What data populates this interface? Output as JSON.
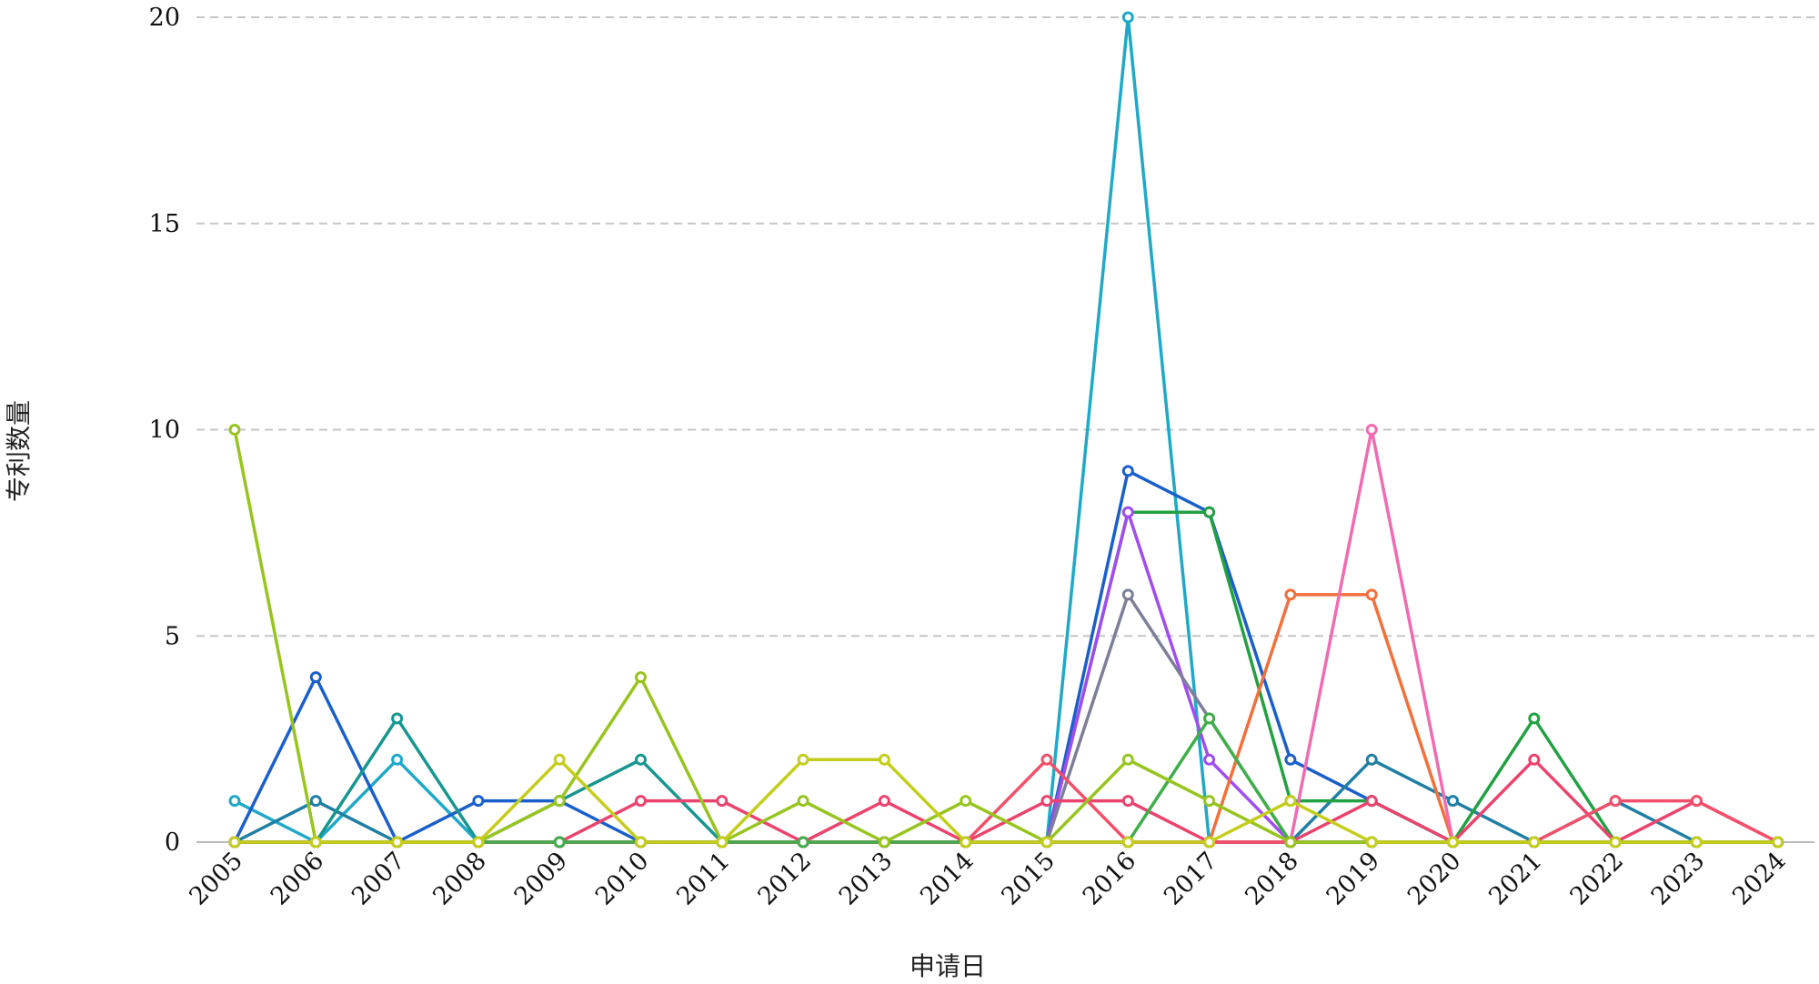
{
  "chart_data": {
    "type": "line",
    "xlabel": "申请日",
    "ylabel": "专利数量",
    "ylim": [
      0,
      20
    ],
    "yticks": [
      0,
      5,
      10,
      15,
      20
    ],
    "grid": true,
    "categories": [
      "2005",
      "2006",
      "2007",
      "2008",
      "2009",
      "2010",
      "2011",
      "2012",
      "2013",
      "2014",
      "2015",
      "2016",
      "2017",
      "2018",
      "2019",
      "2020",
      "2021",
      "2022",
      "2023",
      "2024"
    ],
    "series": [
      {
        "color": "#1fa9c7",
        "values": [
          1,
          0,
          2,
          0,
          0,
          0,
          0,
          0,
          0,
          0,
          0,
          20,
          0,
          0,
          0,
          0,
          0,
          0,
          0,
          0
        ]
      },
      {
        "color": "#1a5fc9",
        "values": [
          0,
          4,
          0,
          1,
          1,
          0,
          0,
          0,
          0,
          0,
          0,
          9,
          8,
          2,
          1,
          0,
          0,
          0,
          0,
          0
        ]
      },
      {
        "color": "#1f7fa3",
        "values": [
          0,
          1,
          0,
          0,
          0,
          0,
          0,
          0,
          0,
          0,
          0,
          0,
          0,
          0,
          2,
          1,
          0,
          1,
          0,
          0
        ]
      },
      {
        "color": "#17968f",
        "values": [
          0,
          0,
          3,
          0,
          1,
          2,
          0,
          0,
          0,
          0,
          0,
          0,
          0,
          0,
          0,
          0,
          0,
          0,
          0,
          0
        ]
      },
      {
        "color": "#22a042",
        "values": [
          0,
          0,
          0,
          0,
          0,
          0,
          0,
          0,
          0,
          0,
          0,
          8,
          8,
          1,
          1,
          0,
          3,
          0,
          0,
          0
        ]
      },
      {
        "color": "#a04cf0",
        "values": [
          0,
          0,
          0,
          0,
          0,
          0,
          0,
          0,
          0,
          0,
          0,
          8,
          2,
          0,
          0,
          0,
          0,
          0,
          0,
          0
        ]
      },
      {
        "color": "#7d7f98",
        "values": [
          0,
          0,
          0,
          0,
          0,
          0,
          0,
          0,
          0,
          0,
          0,
          6,
          3,
          0,
          0,
          0,
          0,
          0,
          0,
          0
        ]
      },
      {
        "color": "#f36f3b",
        "values": [
          0,
          0,
          0,
          0,
          0,
          0,
          0,
          0,
          0,
          0,
          0,
          0,
          0,
          6,
          6,
          0,
          0,
          0,
          0,
          0
        ]
      },
      {
        "color": "#f06bb0",
        "values": [
          0,
          0,
          0,
          0,
          0,
          0,
          0,
          0,
          0,
          0,
          0,
          0,
          0,
          0,
          10,
          0,
          0,
          0,
          0,
          0
        ]
      },
      {
        "color": "#e9436e",
        "values": [
          0,
          0,
          0,
          0,
          0,
          1,
          1,
          0,
          1,
          0,
          1,
          1,
          0,
          0,
          1,
          0,
          2,
          0,
          1,
          0
        ]
      },
      {
        "color": "#f2506a",
        "values": [
          0,
          0,
          0,
          0,
          0,
          0,
          0,
          0,
          0,
          0,
          2,
          0,
          0,
          0,
          0,
          0,
          0,
          1,
          1,
          0
        ]
      },
      {
        "color": "#3fae4a",
        "values": [
          0,
          0,
          0,
          0,
          0,
          0,
          0,
          0,
          0,
          0,
          0,
          0,
          3,
          0,
          0,
          0,
          0,
          0,
          0,
          0
        ]
      },
      {
        "color": "#97c41f",
        "values": [
          10,
          0,
          0,
          0,
          1,
          4,
          0,
          1,
          0,
          1,
          0,
          2,
          1,
          0,
          0,
          0,
          0,
          0,
          0,
          0
        ]
      },
      {
        "color": "#c4cd1c",
        "values": [
          0,
          0,
          0,
          0,
          2,
          0,
          0,
          2,
          2,
          0,
          0,
          0,
          0,
          1,
          0,
          0,
          0,
          0,
          0,
          0
        ]
      }
    ]
  }
}
